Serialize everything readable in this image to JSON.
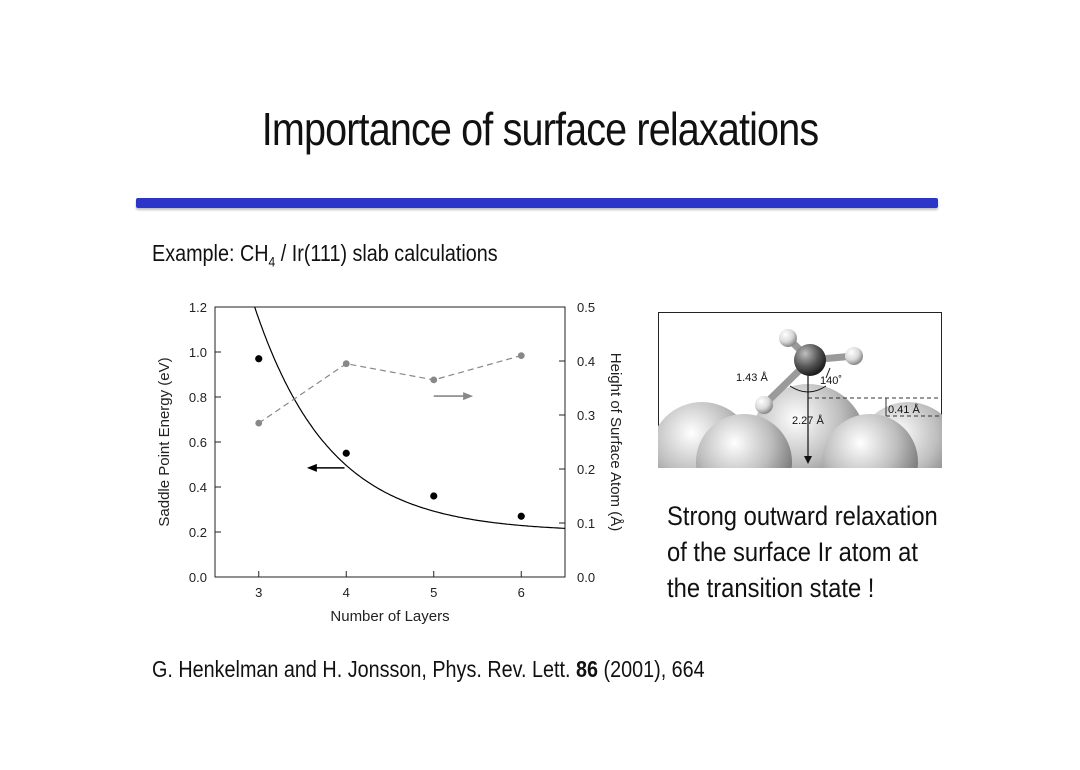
{
  "slide": {
    "title": "Importance of surface relaxations",
    "example_prefix": "Example: CH",
    "example_sub": "4",
    "example_suffix": " / Ir(111)  slab calculations",
    "note_lines": [
      "Strong outward relaxation",
      "of the surface Ir atom at",
      "the transition state !"
    ],
    "citation_pre": "G. Henkelman and H. Jonsson, Phys. Rev. Lett. ",
    "citation_vol": "86",
    "citation_post": " (2001), 664",
    "accent_color": "#2b35c8"
  },
  "inset": {
    "labels": {
      "bond": "1.43 Å",
      "angle": "140˚",
      "height": "2.27 Å",
      "relax": "0.41 Å"
    }
  },
  "chart_data": {
    "type": "line",
    "xlabel": "Number of Layers",
    "ylabel": "Saddle Point Energy (eV)",
    "y2label": "Height of Surface Atom (Å)",
    "x_ticks": [
      3,
      4,
      5,
      6
    ],
    "xlim": [
      2.5,
      6.5
    ],
    "ylim": [
      0.0,
      1.2
    ],
    "y_ticks": [
      "0.0",
      "0.2",
      "0.4",
      "0.6",
      "0.8",
      "1.0",
      "1.2"
    ],
    "y2lim": [
      0.0,
      0.5
    ],
    "y2_ticks": [
      "0.0",
      "0.1",
      "0.2",
      "0.3",
      "0.4",
      "0.5"
    ],
    "series": [
      {
        "axis": "left",
        "style": "solid",
        "color": "#000000",
        "x": [
          3,
          4,
          5,
          6
        ],
        "values": [
          0.97,
          0.55,
          0.36,
          0.27
        ],
        "fit": {
          "form": "a+b*exp(-x/c)",
          "a": 0.2,
          "b": 31.0,
          "c": 0.86
        }
      },
      {
        "axis": "right",
        "style": "dashed",
        "color": "#888888",
        "x": [
          3,
          4,
          5,
          6
        ],
        "values": [
          0.285,
          0.395,
          0.365,
          0.41
        ]
      }
    ],
    "grid": false,
    "legend": "arrows"
  }
}
